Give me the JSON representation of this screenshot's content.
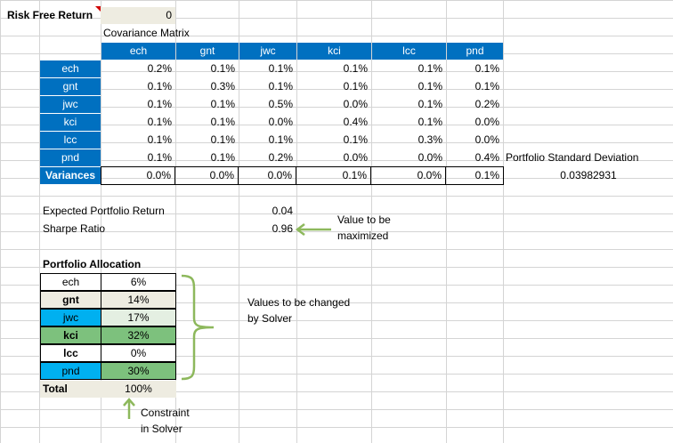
{
  "risk_free": {
    "label": "Risk Free Return",
    "value": "0"
  },
  "cov": {
    "title": "Covariance Matrix",
    "columns": [
      "ech",
      "gnt",
      "jwc",
      "kci",
      "lcc",
      "pnd"
    ],
    "rows": [
      {
        "label": "ech",
        "values": [
          "0.2%",
          "0.1%",
          "0.1%",
          "0.1%",
          "0.1%",
          "0.1%"
        ]
      },
      {
        "label": "gnt",
        "values": [
          "0.1%",
          "0.3%",
          "0.1%",
          "0.1%",
          "0.1%",
          "0.1%"
        ]
      },
      {
        "label": "jwc",
        "values": [
          "0.1%",
          "0.1%",
          "0.5%",
          "0.0%",
          "0.1%",
          "0.2%"
        ]
      },
      {
        "label": "kci",
        "values": [
          "0.1%",
          "0.1%",
          "0.0%",
          "0.4%",
          "0.1%",
          "0.0%"
        ]
      },
      {
        "label": "lcc",
        "values": [
          "0.1%",
          "0.1%",
          "0.1%",
          "0.1%",
          "0.3%",
          "0.0%"
        ]
      },
      {
        "label": "pnd",
        "values": [
          "0.1%",
          "0.1%",
          "0.2%",
          "0.0%",
          "0.0%",
          "0.4%"
        ]
      }
    ],
    "variances": {
      "label": "Variances",
      "values": [
        "0.0%",
        "0.0%",
        "0.0%",
        "0.1%",
        "0.0%",
        "0.1%"
      ]
    }
  },
  "std_dev": {
    "label": "Portfolio Standard Deviation",
    "value": "0.03982931"
  },
  "expected_return": {
    "label": "Expected Portfolio Return",
    "value": "0.04"
  },
  "sharpe": {
    "label": "Sharpe Ratio",
    "value": "0.96"
  },
  "annotations": {
    "maximize": [
      "Value to be",
      "maximized"
    ],
    "changed": [
      "Values to be changed",
      "by Solver"
    ],
    "constraint": [
      "Constraint",
      "in Solver"
    ]
  },
  "allocation": {
    "title": "Portfolio Allocation",
    "rows": [
      {
        "label": "ech",
        "value": "6%"
      },
      {
        "label": "gnt",
        "value": "14%"
      },
      {
        "label": "jwc",
        "value": "17%"
      },
      {
        "label": "kci",
        "value": "32%"
      },
      {
        "label": "lcc",
        "value": "0%"
      },
      {
        "label": "pnd",
        "value": "30%"
      }
    ],
    "total": {
      "label": "Total",
      "value": "100%"
    }
  },
  "colors": {
    "header_blue": "#0070c0",
    "solver_green": "#7dc17d",
    "cyan": "#00b0f0",
    "arrow_green": "#8db85c"
  }
}
